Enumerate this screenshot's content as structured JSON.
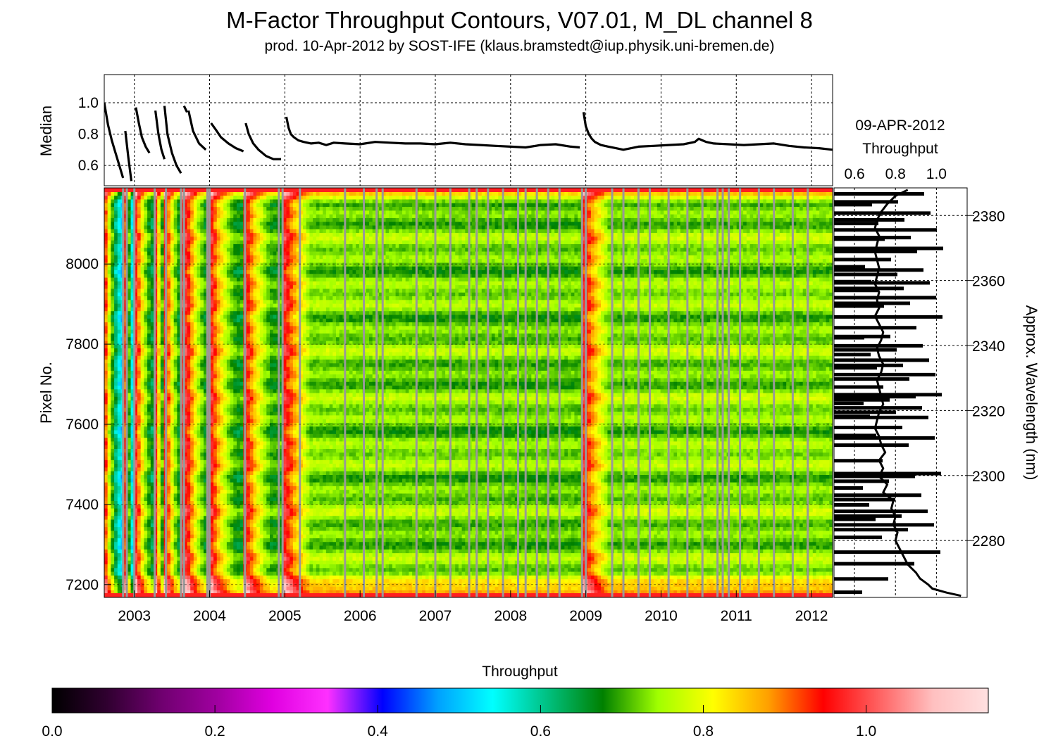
{
  "title": "M-Factor Throughput Contours, V07.01, M_DL channel 8",
  "subtitle": "prod. 10-Apr-2012 by SOST-IFE (klaus.bramstedt@iup.physik.uni-bremen.de)",
  "colors": {
    "colorbar_stops": [
      "#000000",
      "#300030",
      "#700070",
      "#a000a0",
      "#e000e0",
      "#ff30ff",
      "#0000ff",
      "#00a0ff",
      "#00ffff",
      "#00c080",
      "#008000",
      "#a0ff00",
      "#ffff00",
      "#ffa000",
      "#ff0000",
      "#ff6060",
      "#ffc0c0",
      "#ffe0e0"
    ],
    "gap_lines": "#999999",
    "edge_rows": "#ff2020"
  },
  "chart_data": [
    {
      "type": "line",
      "name": "median-panel",
      "ylabel": "Median",
      "ylim": [
        0.47,
        1.18
      ],
      "yticks": [
        "0.6",
        "0.8",
        "1.0"
      ],
      "xlim": [
        2002.6,
        2012.28
      ],
      "grid": true,
      "segments": [
        {
          "x": [
            2002.6,
            2002.65,
            2002.7,
            2002.75,
            2002.8,
            2002.85
          ],
          "y": [
            1.0,
            0.86,
            0.76,
            0.68,
            0.6,
            0.52
          ]
        },
        {
          "x": [
            2002.88,
            2002.92,
            2002.96
          ],
          "y": [
            0.82,
            0.65,
            0.5
          ]
        },
        {
          "x": [
            2003.02,
            2003.06,
            2003.1,
            2003.15,
            2003.2
          ],
          "y": [
            0.97,
            0.87,
            0.78,
            0.72,
            0.68
          ]
        },
        {
          "x": [
            2003.28,
            2003.32,
            2003.36,
            2003.4
          ],
          "y": [
            0.95,
            0.8,
            0.7,
            0.64
          ]
        },
        {
          "x": [
            2003.4,
            2003.44,
            2003.5,
            2003.56,
            2003.62
          ],
          "y": [
            0.98,
            0.8,
            0.68,
            0.6,
            0.55
          ]
        },
        {
          "x": [
            2003.66,
            2003.7
          ],
          "y": [
            0.98,
            0.94
          ]
        },
        {
          "x": [
            2003.72,
            2003.78,
            2003.86,
            2003.95
          ],
          "y": [
            0.95,
            0.82,
            0.74,
            0.7
          ]
        },
        {
          "x": [
            2004.02,
            2004.08,
            2004.15,
            2004.25,
            2004.35,
            2004.45
          ],
          "y": [
            0.87,
            0.83,
            0.78,
            0.74,
            0.71,
            0.69
          ]
        },
        {
          "x": [
            2004.48,
            2004.52,
            2004.58,
            2004.65,
            2004.75,
            2004.85,
            2004.95
          ],
          "y": [
            0.87,
            0.8,
            0.74,
            0.7,
            0.66,
            0.64,
            0.64
          ]
        },
        {
          "x": [
            2005.02,
            2005.05,
            2005.08,
            2005.12,
            2005.18,
            2005.25,
            2005.35,
            2005.45,
            2005.55,
            2005.65,
            2005.8,
            2006.0,
            2006.2,
            2006.4,
            2006.6,
            2006.8,
            2007.0,
            2007.2,
            2007.4,
            2007.6,
            2007.8,
            2008.0,
            2008.2,
            2008.4,
            2008.6,
            2008.8,
            2008.92
          ],
          "y": [
            0.91,
            0.84,
            0.8,
            0.78,
            0.76,
            0.75,
            0.74,
            0.745,
            0.73,
            0.745,
            0.74,
            0.735,
            0.75,
            0.745,
            0.74,
            0.74,
            0.735,
            0.745,
            0.735,
            0.73,
            0.725,
            0.72,
            0.715,
            0.73,
            0.735,
            0.72,
            0.715
          ]
        },
        {
          "x": [
            2008.97,
            2009.0,
            2009.04,
            2009.08,
            2009.12,
            2009.2,
            2009.3,
            2009.4,
            2009.5,
            2009.7,
            2009.9,
            2010.1,
            2010.3,
            2010.45,
            2010.5,
            2010.55,
            2010.6,
            2010.7,
            2010.9,
            2011.1,
            2011.3,
            2011.5,
            2011.7,
            2011.9,
            2012.1,
            2012.28
          ],
          "y": [
            0.94,
            0.85,
            0.8,
            0.77,
            0.75,
            0.73,
            0.72,
            0.71,
            0.7,
            0.72,
            0.725,
            0.73,
            0.735,
            0.75,
            0.77,
            0.76,
            0.75,
            0.74,
            0.735,
            0.73,
            0.735,
            0.74,
            0.725,
            0.715,
            0.71,
            0.7
          ]
        }
      ]
    },
    {
      "type": "heatmap",
      "name": "throughput-contours",
      "xlabel": "",
      "ylabel": "Pixel No.",
      "xlim": [
        2002.6,
        2012.28
      ],
      "ylim": [
        7168,
        8190
      ],
      "xticks": [
        "2003",
        "2004",
        "2005",
        "2006",
        "2007",
        "2008",
        "2009",
        "2010",
        "2011",
        "2012"
      ],
      "yticks": [
        "7200",
        "7400",
        "7600",
        "7800",
        "8000"
      ],
      "value_range": [
        0.0,
        1.15
      ],
      "decay_events": [
        {
          "start": 2002.6,
          "end": 2002.86
        },
        {
          "start": 2002.88,
          "end": 2003.0
        },
        {
          "start": 2003.02,
          "end": 2003.25
        },
        {
          "start": 2003.28,
          "end": 2003.4
        },
        {
          "start": 2003.42,
          "end": 2003.62
        },
        {
          "start": 2003.7,
          "end": 2003.98
        },
        {
          "start": 2004.02,
          "end": 2004.45
        },
        {
          "start": 2004.48,
          "end": 2004.97
        },
        {
          "start": 2005.0,
          "end": 2008.95
        },
        {
          "start": 2008.97,
          "end": 2012.28
        }
      ],
      "data_gaps": [
        2002.85,
        2002.9,
        2003.0,
        2003.27,
        2003.42,
        2003.62,
        2003.66,
        2003.97,
        2004.0,
        2004.47,
        2004.92,
        2004.97,
        2005.2,
        2005.8,
        2006.05,
        2006.22,
        2006.3,
        2006.75,
        2007.0,
        2007.2,
        2007.45,
        2007.55,
        2007.7,
        2007.9,
        2008.1,
        2008.2,
        2008.35,
        2008.5,
        2008.65,
        2008.95,
        2009.0,
        2009.35,
        2009.5,
        2009.7,
        2009.85,
        2010.1,
        2010.35,
        2010.55,
        2010.75,
        2010.82,
        2010.9,
        2011.05,
        2011.3,
        2011.5,
        2011.75,
        2011.95
      ]
    },
    {
      "type": "line",
      "name": "throughput-profile",
      "title": "09-APR-2012",
      "subtitle": "Throughput",
      "xticks": [
        "0.6",
        "0.8",
        "1.0"
      ],
      "xlim": [
        0.5,
        1.15
      ],
      "y2label": "Approx. Wavelength (nm)",
      "y2ticks": [
        "2280",
        "2300",
        "2320",
        "2340",
        "2360",
        "2380"
      ],
      "wavelength_range": [
        2262.5,
        2388.5
      ],
      "pixel": [
        7172,
        7180,
        7190,
        7200,
        7215,
        7230,
        7250,
        7270,
        7290,
        7310,
        7330,
        7350,
        7370,
        7390,
        7410,
        7430,
        7450,
        7470,
        7490,
        7510,
        7530,
        7550,
        7570,
        7590,
        7610,
        7630,
        7650,
        7670,
        7690,
        7710,
        7730,
        7750,
        7770,
        7790,
        7810,
        7830,
        7850,
        7870,
        7890,
        7910,
        7930,
        7950,
        7970,
        7990,
        8010,
        8030,
        8050,
        8070,
        8090,
        8110,
        8130,
        8150,
        8170,
        8185
      ],
      "value": [
        1.12,
        1.05,
        0.98,
        0.96,
        0.92,
        0.9,
        0.86,
        0.84,
        0.82,
        0.8,
        0.81,
        0.79,
        0.8,
        0.78,
        0.79,
        0.74,
        0.76,
        0.72,
        0.74,
        0.72,
        0.75,
        0.73,
        0.72,
        0.7,
        0.71,
        0.72,
        0.74,
        0.73,
        0.72,
        0.71,
        0.73,
        0.74,
        0.72,
        0.71,
        0.73,
        0.74,
        0.72,
        0.7,
        0.72,
        0.71,
        0.72,
        0.7,
        0.71,
        0.72,
        0.71,
        0.7,
        0.71,
        0.72,
        0.7,
        0.71,
        0.73,
        0.76,
        0.8,
        0.86
      ],
      "spike_pixels": [
        7181,
        7214,
        7252,
        7281,
        7318,
        7337,
        7349,
        7363,
        7371,
        7383,
        7399,
        7412,
        7423,
        7441,
        7458,
        7470,
        7477,
        7509,
        7548,
        7566,
        7572,
        7592,
        7617,
        7620,
        7630,
        7641,
        7652,
        7661,
        7669,
        7674,
        7693,
        7713,
        7724,
        7741,
        7747,
        7760,
        7774,
        7786,
        7796,
        7816,
        7819,
        7841,
        7868,
        7895,
        7902,
        7916,
        7934,
        7939,
        7953,
        7956,
        7974,
        7985,
        7993,
        8011,
        8031,
        8039,
        8062,
        8066,
        8085,
        8101,
        8110,
        8127,
        8148,
        8155,
        8175
      ]
    },
    {
      "type": "colorbar",
      "label": "Throughput",
      "ticks": [
        "0.0",
        "0.2",
        "0.4",
        "0.6",
        "0.8",
        "1.0"
      ],
      "range": [
        0.0,
        1.15
      ]
    }
  ]
}
